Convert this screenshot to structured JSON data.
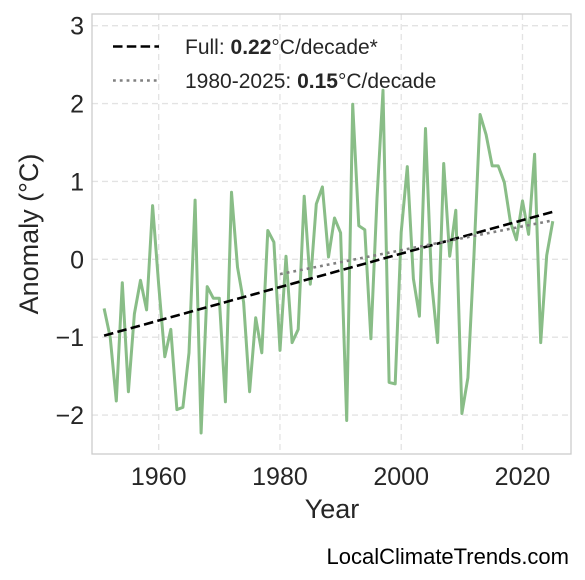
{
  "chart_data": {
    "type": "line",
    "xlabel": "Year",
    "ylabel": "Anomaly (°C)",
    "xlim": [
      1949,
      2028
    ],
    "ylim": [
      -2.5,
      3.15
    ],
    "xticks": [
      1960,
      1980,
      2000,
      2020
    ],
    "yticks": [
      -2,
      -1,
      0,
      1,
      2,
      3
    ],
    "ytick_labels": [
      "−2",
      "−1",
      "0",
      "1",
      "2",
      "3"
    ],
    "grid": true,
    "legend_position": "top-left",
    "series": [
      {
        "type": "line",
        "color": "#89bd87",
        "x": [
          1951,
          1952,
          1953,
          1954,
          1955,
          1956,
          1957,
          1958,
          1959,
          1960,
          1961,
          1962,
          1963,
          1964,
          1965,
          1966,
          1967,
          1968,
          1969,
          1970,
          1971,
          1972,
          1973,
          1974,
          1975,
          1976,
          1977,
          1978,
          1979,
          1980,
          1981,
          1982,
          1983,
          1984,
          1985,
          1986,
          1987,
          1988,
          1989,
          1990,
          1991,
          1992,
          1993,
          1994,
          1995,
          1996,
          1997,
          1998,
          1999,
          2000,
          2001,
          2002,
          2003,
          2004,
          2005,
          2006,
          2007,
          2008,
          2009,
          2010,
          2011,
          2012,
          2013,
          2014,
          2015,
          2016,
          2017,
          2018,
          2019,
          2020,
          2021,
          2022,
          2023,
          2024,
          2025
        ],
        "y": [
          -0.63,
          -1.0,
          -1.82,
          -0.3,
          -1.7,
          -0.7,
          -0.27,
          -0.65,
          0.69,
          -0.33,
          -1.25,
          -0.9,
          -1.93,
          -1.9,
          -1.2,
          0.76,
          -2.23,
          -0.35,
          -0.5,
          -0.5,
          -1.83,
          0.86,
          -0.1,
          -0.55,
          -1.7,
          -0.75,
          -1.2,
          0.37,
          0.22,
          -1.17,
          0.04,
          -1.07,
          -0.9,
          0.81,
          -0.32,
          0.71,
          0.93,
          0.03,
          0.53,
          0.34,
          -2.07,
          1.99,
          0.43,
          0.38,
          -1.02,
          0.78,
          2.17,
          -1.58,
          -1.6,
          0.35,
          1.19,
          -0.25,
          -0.73,
          1.68,
          -0.28,
          -1.07,
          1.23,
          0.04,
          0.63,
          -1.98,
          -1.52,
          0.06,
          1.86,
          1.6,
          1.2,
          1.2,
          0.99,
          0.48,
          0.25,
          0.75,
          0.32,
          1.35,
          -1.07,
          0.05,
          0.49
        ]
      },
      {
        "name": "Full",
        "type": "trend",
        "style": "dashed",
        "color": "#000000",
        "rate": "0.22",
        "unit": "°C/decade*",
        "x": [
          1951,
          2025
        ],
        "y": [
          -0.98,
          0.61
        ]
      },
      {
        "name": "1980-2025",
        "type": "trend",
        "style": "dotted",
        "color": "#808080",
        "rate": "0.15",
        "unit": "°C/decade",
        "x": [
          1980,
          2025
        ],
        "y": [
          -0.19,
          0.5
        ]
      }
    ]
  },
  "legend": {
    "full_prefix": "Full: ",
    "full_rate": "0.22",
    "full_unit": "°C/decade*",
    "recent_prefix": "1980-2025: ",
    "recent_rate": "0.15",
    "recent_unit": "°C/decade"
  },
  "credit": "LocalClimateTrends.com"
}
